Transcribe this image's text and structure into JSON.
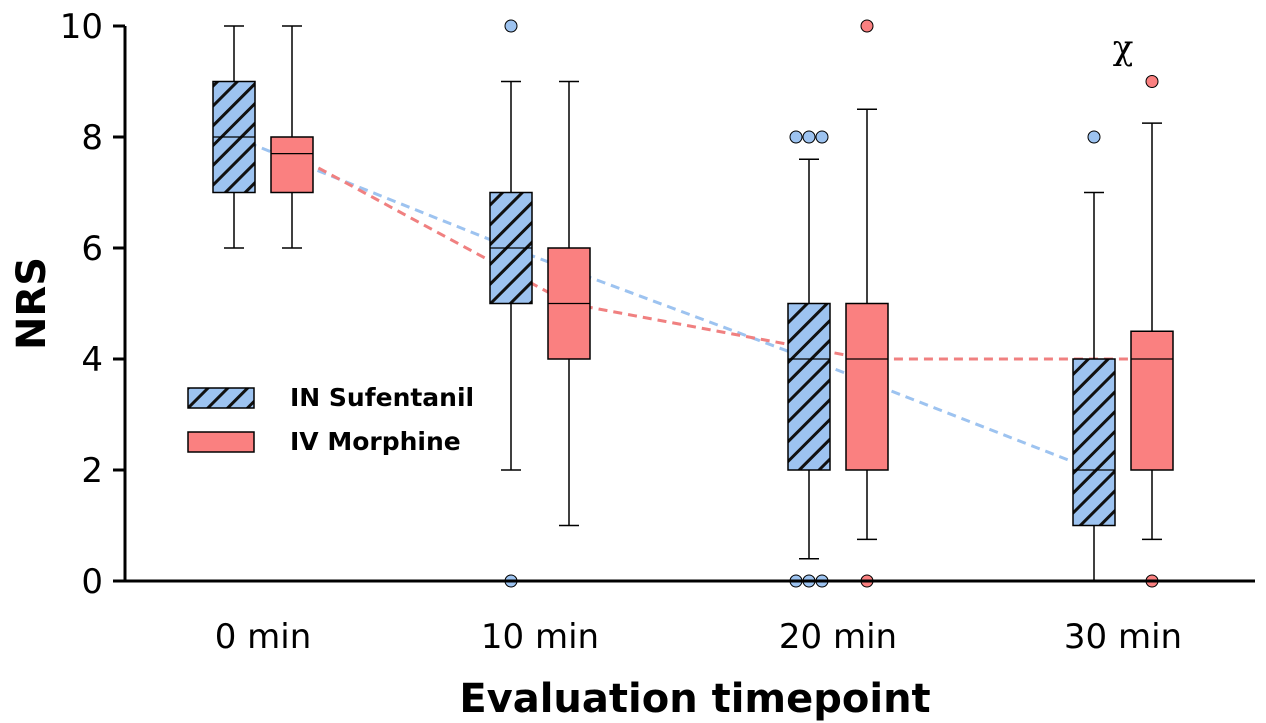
{
  "chart_data": {
    "type": "box",
    "title": "",
    "xlabel": "Evaluation timepoint",
    "ylabel": "NRS",
    "ylim": [
      0,
      10
    ],
    "yticks": [
      0,
      2,
      4,
      6,
      8,
      10
    ],
    "categories": [
      "0 min",
      "10 min",
      "20 min",
      "30 min"
    ],
    "legend_position": "left-middle",
    "series": [
      {
        "name": "IN Sufentanil",
        "color": "#9DC3F0",
        "pattern": "diagonal-hatch",
        "line_color": "#9DC3F0",
        "boxes": [
          {
            "whisker_low": 6,
            "q1": 7,
            "median": 8,
            "q3": 9,
            "whisker_high": 10,
            "outliers": []
          },
          {
            "whisker_low": 2,
            "q1": 5,
            "median": 6,
            "q3": 7,
            "whisker_high": 9,
            "outliers": [
              10,
              0
            ]
          },
          {
            "whisker_low": 0.4,
            "q1": 2,
            "median": 4,
            "q3": 5,
            "whisker_high": 7.6,
            "outliers": [
              8,
              8,
              8,
              0,
              0,
              0
            ]
          },
          {
            "whisker_low": 0,
            "q1": 1,
            "median": 2,
            "q3": 4,
            "whisker_high": 7,
            "outliers": [
              8
            ]
          }
        ]
      },
      {
        "name": "IV Morphine",
        "color": "#FA8080",
        "pattern": "solid",
        "line_color": "#F08080",
        "boxes": [
          {
            "whisker_low": 6,
            "q1": 7,
            "median": 7.7,
            "q3": 8,
            "whisker_high": 10,
            "outliers": []
          },
          {
            "whisker_low": 1,
            "q1": 4,
            "median": 5,
            "q3": 6,
            "whisker_high": 9,
            "outliers": []
          },
          {
            "whisker_low": 0.75,
            "q1": 2,
            "median": 4,
            "q3": 5,
            "whisker_high": 8.5,
            "outliers": [
              10,
              0
            ]
          },
          {
            "whisker_low": 0.75,
            "q1": 2,
            "median": 4,
            "q3": 4.5,
            "whisker_high": 8.25,
            "outliers": [
              9,
              0
            ]
          }
        ]
      }
    ],
    "annotations": [
      {
        "text": "χ",
        "category": "30 min",
        "y": 9.8
      }
    ]
  }
}
